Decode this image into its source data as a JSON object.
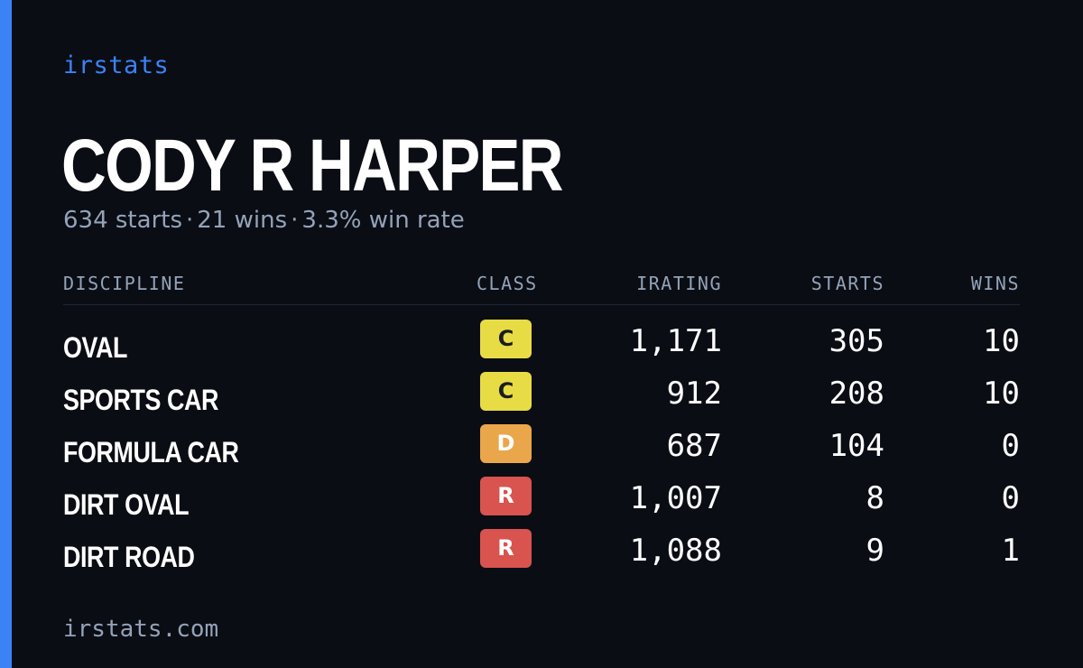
{
  "brand": "irstats",
  "driver": {
    "name": "CODY R HARPER",
    "starts_text": "634 starts",
    "wins_text": "21 wins",
    "win_rate_text": "3.3% win rate",
    "separator": "·"
  },
  "table": {
    "headers": {
      "discipline": "DISCIPLINE",
      "class": "CLASS",
      "irating": "IRATING",
      "starts": "STARTS",
      "wins": "WINS"
    },
    "rows": [
      {
        "discipline": "OVAL",
        "class": "C",
        "irating": "1,171",
        "starts": "305",
        "wins": "10"
      },
      {
        "discipline": "SPORTS CAR",
        "class": "C",
        "irating": "912",
        "starts": "208",
        "wins": "10"
      },
      {
        "discipline": "FORMULA CAR",
        "class": "D",
        "irating": "687",
        "starts": "104",
        "wins": "0"
      },
      {
        "discipline": "DIRT OVAL",
        "class": "R",
        "irating": "1,007",
        "starts": "8",
        "wins": "0"
      },
      {
        "discipline": "DIRT ROAD",
        "class": "R",
        "irating": "1,088",
        "starts": "9",
        "wins": "1"
      }
    ]
  },
  "class_colors": {
    "C": "#e8dc45",
    "D": "#eaa64a",
    "R": "#d9534f"
  },
  "accent_color": "#3b82f6",
  "footer": "irstats.com"
}
